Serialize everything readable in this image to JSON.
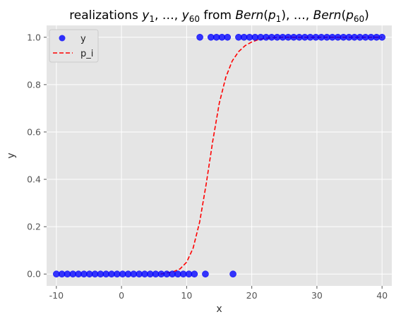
{
  "chart_data": {
    "type": "scatter",
    "title_parts": [
      {
        "t": "realizations ",
        "i": false
      },
      {
        "t": "y",
        "i": true
      },
      {
        "t": "1",
        "sub": true
      },
      {
        "t": ", …, ",
        "i": false
      },
      {
        "t": "y",
        "i": true
      },
      {
        "t": "60",
        "sub": true
      },
      {
        "t": " from ",
        "i": false
      },
      {
        "t": "Bern",
        "i": true
      },
      {
        "t": "(",
        "i": false
      },
      {
        "t": "p",
        "i": true
      },
      {
        "t": "1",
        "sub": true
      },
      {
        "t": "), …, ",
        "i": false
      },
      {
        "t": "Bern",
        "i": true
      },
      {
        "t": "(",
        "i": false
      },
      {
        "t": "p",
        "i": true
      },
      {
        "t": "60",
        "sub": true
      },
      {
        "t": ")",
        "i": false
      }
    ],
    "xlabel": "x",
    "ylabel": "y",
    "xlim": [
      -11.5,
      41.5
    ],
    "ylim": [
      -0.05,
      1.05
    ],
    "xticks": [
      -10,
      0,
      10,
      20,
      30,
      40
    ],
    "yticks": [
      0.0,
      0.2,
      0.4,
      0.6,
      0.8,
      1.0
    ],
    "ytick_labels": [
      "0.0",
      "0.2",
      "0.4",
      "0.6",
      "0.8",
      "1.0"
    ],
    "grid": true,
    "legend_position": "top-left",
    "series": [
      {
        "name": "y",
        "kind": "scatter",
        "color": "#0000ff",
        "x": [
          -10,
          -9.15,
          -8.31,
          -7.46,
          -6.61,
          -5.76,
          -4.92,
          -4.07,
          -3.22,
          -2.37,
          -1.53,
          -0.68,
          0.17,
          1.02,
          1.86,
          2.71,
          3.56,
          4.41,
          5.25,
          6.1,
          6.95,
          7.8,
          8.64,
          9.49,
          10.34,
          11.19,
          12.03,
          12.88,
          13.73,
          14.58,
          15.42,
          16.27,
          17.12,
          17.97,
          18.81,
          19.66,
          20.51,
          21.36,
          22.2,
          23.05,
          23.9,
          24.75,
          25.59,
          26.44,
          27.29,
          28.14,
          28.98,
          29.83,
          30.68,
          31.53,
          32.37,
          33.22,
          34.07,
          34.92,
          35.76,
          36.61,
          37.46,
          38.31,
          39.15,
          40.0
        ],
        "y": [
          0,
          0,
          0,
          0,
          0,
          0,
          0,
          0,
          0,
          0,
          0,
          0,
          0,
          0,
          0,
          0,
          0,
          0,
          0,
          0,
          0,
          0,
          0,
          0,
          0,
          0,
          1,
          0,
          1,
          1,
          1,
          1,
          0,
          1,
          1,
          1,
          1,
          1,
          1,
          1,
          1,
          1,
          1,
          1,
          1,
          1,
          1,
          1,
          1,
          1,
          1,
          1,
          1,
          1,
          1,
          1,
          1,
          1,
          1,
          1
        ]
      },
      {
        "name": "p_i",
        "kind": "line",
        "style": "dashed",
        "color": "#ff0000",
        "x": [
          6.0,
          7.0,
          8.0,
          9.0,
          10.0,
          11.0,
          12.0,
          13.0,
          14.0,
          15.0,
          16.0,
          17.0,
          18.0,
          19.0,
          20.0,
          21.0,
          22.0,
          23.0,
          24.0,
          25.0,
          26.0,
          27.0,
          28.0,
          29.0,
          30.0,
          31.0,
          32.0,
          33.0,
          34.0,
          35.0,
          36.0,
          37.0,
          38.0,
          39.0,
          40.0
        ],
        "y": [
          0.0,
          0.005,
          0.01,
          0.022,
          0.05,
          0.11,
          0.22,
          0.38,
          0.56,
          0.72,
          0.83,
          0.9,
          0.94,
          0.965,
          0.98,
          0.99,
          0.995,
          0.998,
          0.999,
          1.0,
          1.0,
          1.0,
          1.0,
          1.0,
          1.0,
          1.0,
          1.0,
          1.0,
          1.0,
          1.0,
          1.0,
          1.0,
          1.0,
          1.0,
          1.0
        ]
      }
    ]
  }
}
